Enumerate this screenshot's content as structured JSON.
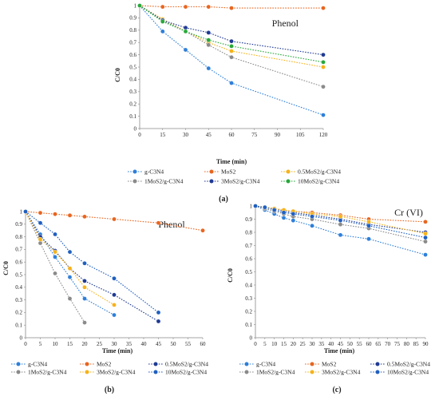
{
  "panels": [
    {
      "label": "(a)",
      "chart_data": {
        "type": "line",
        "title": "Phenol",
        "xlabel": "Time (min)",
        "ylabel": "C/C0",
        "xlim": [
          0,
          120
        ],
        "ylim": [
          0,
          1
        ],
        "xticks": [
          "0",
          "15",
          "30",
          "45",
          "60",
          "75",
          "90",
          "105",
          "120"
        ],
        "yticks": [
          "0",
          "0.1",
          "0.2",
          "0.3",
          "0.4",
          "0.5",
          "0.6",
          "0.7",
          "0.8",
          "0.9",
          "1"
        ],
        "grid": false,
        "legend_position": "bottom",
        "series": [
          {
            "name": "g-C3N4",
            "color": "#2e7fd9",
            "x": [
              0,
              15,
              30,
              45,
              60,
              120
            ],
            "y": [
              1,
              0.79,
              0.64,
              0.49,
              0.37,
              0.11
            ]
          },
          {
            "name": "MoS2",
            "color": "#e8651f",
            "x": [
              0,
              15,
              30,
              45,
              60,
              120
            ],
            "y": [
              1,
              0.99,
              0.99,
              0.99,
              0.98,
              0.98
            ]
          },
          {
            "name": "0.5MoS2/g-C3N4",
            "color": "#f6b21a",
            "x": [
              0,
              15,
              30,
              45,
              60,
              120
            ],
            "y": [
              1,
              0.89,
              0.79,
              0.7,
              0.63,
              0.5
            ]
          },
          {
            "name": "1MoS2/g-C3N4",
            "color": "#8a8a8a",
            "x": [
              0,
              15,
              30,
              45,
              60,
              120
            ],
            "y": [
              1,
              0.88,
              0.79,
              0.68,
              0.58,
              0.34
            ]
          },
          {
            "name": "3MoS2/g-C3N4",
            "color": "#1f3a93",
            "x": [
              0,
              15,
              30,
              45,
              60,
              120
            ],
            "y": [
              1,
              0.88,
              0.82,
              0.78,
              0.71,
              0.6
            ]
          },
          {
            "name": "10MoS2/g-C3N4",
            "color": "#27a83a",
            "x": [
              0,
              15,
              30,
              45,
              60,
              120
            ],
            "y": [
              1,
              0.87,
              0.79,
              0.72,
              0.67,
              0.54
            ]
          }
        ]
      }
    },
    {
      "label": "(b)",
      "chart_data": {
        "type": "line",
        "title": "Phenol",
        "xlabel": "Time (min)",
        "ylabel": "C/C0",
        "xlim": [
          0,
          60
        ],
        "ylim": [
          0,
          1
        ],
        "xticks": [
          "0",
          "5",
          "10",
          "15",
          "20",
          "25",
          "30",
          "35",
          "40",
          "45",
          "50",
          "55",
          "60"
        ],
        "yticks": [
          "0",
          "0.1",
          "0.2",
          "0.3",
          "0.4",
          "0.5",
          "0.6",
          "0.7",
          "0.8",
          "0.9",
          "1"
        ],
        "grid": false,
        "legend_position": "bottom",
        "series": [
          {
            "name": "g-C3N4",
            "color": "#2e7fd9",
            "x": [
              0,
              5,
              10,
              15,
              20,
              30
            ],
            "y": [
              1,
              0.82,
              0.64,
              0.48,
              0.31,
              0.18
            ]
          },
          {
            "name": "MoS2",
            "color": "#e8651f",
            "x": [
              0,
              5,
              10,
              15,
              20,
              30,
              45,
              60
            ],
            "y": [
              1,
              0.99,
              0.98,
              0.97,
              0.96,
              0.94,
              0.91,
              0.85
            ]
          },
          {
            "name": "0.5MoS2/g-C3N4",
            "color": "#1f3a93",
            "x": [
              0,
              5,
              10,
              15,
              20,
              30,
              45
            ],
            "y": [
              1,
              0.8,
              0.69,
              0.55,
              0.45,
              0.34,
              0.13
            ]
          },
          {
            "name": "1MoS2/g-C3N4",
            "color": "#8a8a8a",
            "x": [
              0,
              5,
              10,
              15,
              20
            ],
            "y": [
              1,
              0.75,
              0.51,
              0.31,
              0.12
            ]
          },
          {
            "name": "3MoS2/g-C3N4",
            "color": "#f6b21a",
            "x": [
              0,
              5,
              10,
              15,
              20,
              30
            ],
            "y": [
              1,
              0.78,
              0.68,
              0.55,
              0.4,
              0.26
            ]
          },
          {
            "name": "10MoS2/g-C3N4",
            "color": "#1f5fbf",
            "x": [
              0,
              5,
              10,
              15,
              20,
              30,
              45
            ],
            "y": [
              1,
              0.91,
              0.82,
              0.68,
              0.59,
              0.47,
              0.2
            ]
          }
        ]
      }
    },
    {
      "label": "(c)",
      "chart_data": {
        "type": "line",
        "title": "Cr (VI)",
        "xlabel": "Time (min)",
        "ylabel": "C/C0",
        "xlim": [
          0,
          90
        ],
        "ylim": [
          0,
          1
        ],
        "xticks": [
          "0",
          "5",
          "10",
          "15",
          "20",
          "25",
          "30",
          "35",
          "40",
          "45",
          "50",
          "55",
          "60",
          "65",
          "70",
          "75",
          "80",
          "85",
          "90"
        ],
        "yticks": [
          "0",
          "0.1",
          "0.2",
          "0.3",
          "0.4",
          "0.5",
          "0.6",
          "0.7",
          "0.8",
          "0.9",
          "1"
        ],
        "grid": false,
        "legend_position": "bottom",
        "series": [
          {
            "name": "g-C3N4",
            "color": "#2e7fd9",
            "x": [
              0,
              5,
              10,
              15,
              20,
              30,
              45,
              60,
              90
            ],
            "y": [
              1,
              0.97,
              0.94,
              0.91,
              0.89,
              0.85,
              0.78,
              0.75,
              0.63
            ]
          },
          {
            "name": "MoS2",
            "color": "#e8651f",
            "x": [
              0,
              5,
              10,
              15,
              20,
              30,
              45,
              60,
              90
            ],
            "y": [
              1,
              0.99,
              0.98,
              0.97,
              0.96,
              0.95,
              0.93,
              0.9,
              0.88
            ]
          },
          {
            "name": "0.5MoS2/g-C3N4",
            "color": "#1f3a93",
            "x": [
              0,
              5,
              10,
              15,
              20,
              30,
              45,
              60,
              90
            ],
            "y": [
              1,
              0.99,
              0.98,
              0.96,
              0.95,
              0.93,
              0.9,
              0.86,
              0.8
            ]
          },
          {
            "name": "1MoS2/g-C3N4",
            "color": "#8a8a8a",
            "x": [
              0,
              5,
              10,
              15,
              20,
              30,
              45,
              60,
              90
            ],
            "y": [
              1,
              0.98,
              0.96,
              0.94,
              0.92,
              0.9,
              0.86,
              0.83,
              0.73
            ]
          },
          {
            "name": "3MoS2/g-C3N4",
            "color": "#f6b21a",
            "x": [
              0,
              5,
              10,
              15,
              20,
              30,
              45,
              60,
              90
            ],
            "y": [
              1,
              0.99,
              0.98,
              0.97,
              0.96,
              0.94,
              0.92,
              0.88,
              0.79
            ]
          },
          {
            "name": "10MoS2/g-C3N4",
            "color": "#1f5fbf",
            "x": [
              0,
              5,
              10,
              15,
              20,
              30,
              45,
              60,
              90
            ],
            "y": [
              1,
              0.99,
              0.97,
              0.95,
              0.94,
              0.92,
              0.89,
              0.85,
              0.76
            ]
          }
        ]
      }
    }
  ]
}
